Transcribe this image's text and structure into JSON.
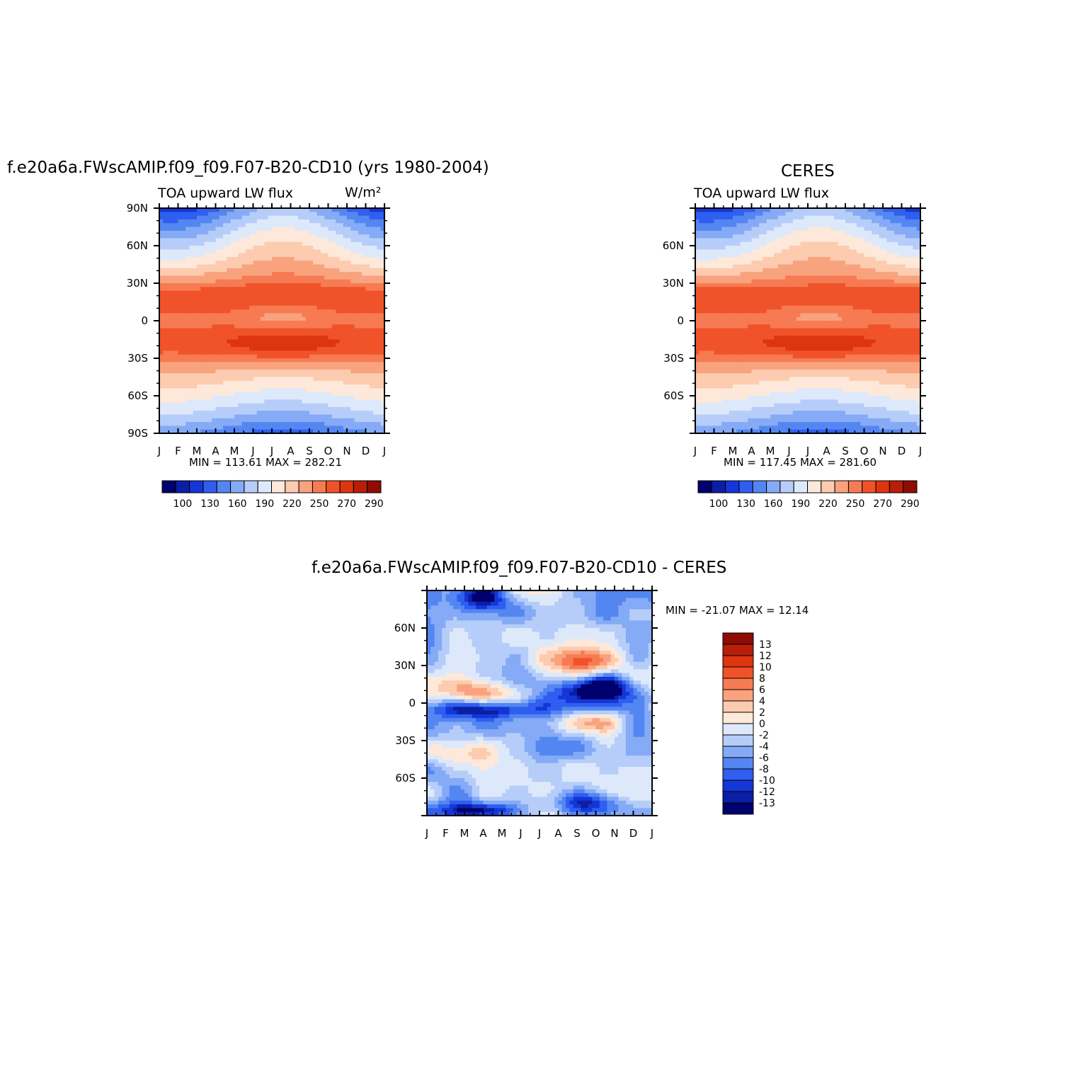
{
  "figure": {
    "title_left": "f.e20a6a.FWscAMIP.f09_f09.F07-B20-CD10 (yrs 1980-2004)",
    "title_right": "CERES",
    "title_bottom": "f.e20a6a.FWscAMIP.f09_f09.F07-B20-CD10 - CERES"
  },
  "chart_data": [
    {
      "type": "heatmap",
      "subtitle": "TOA upward LW flux",
      "units": "W/m²",
      "x_ticks": [
        "J",
        "F",
        "M",
        "A",
        "M",
        "J",
        "J",
        "A",
        "S",
        "O",
        "N",
        "D",
        "J"
      ],
      "y_ticks": [
        "90N",
        "60N",
        "30N",
        "0",
        "30S",
        "60S",
        "90S"
      ],
      "y_values": [
        90,
        60,
        30,
        0,
        -30,
        -60,
        -90
      ],
      "stats": "MIN = 113.61 MAX = 282.21",
      "min": 113.61,
      "max": 282.21,
      "colorbar_labels": [
        "100",
        "130",
        "160",
        "190",
        "220",
        "250",
        "270",
        "290"
      ],
      "colorbar_levels": [
        100,
        115,
        130,
        145,
        160,
        175,
        190,
        205,
        220,
        235,
        250,
        260,
        270,
        280,
        290
      ],
      "field": "model"
    },
    {
      "type": "heatmap",
      "subtitle": "TOA upward LW flux",
      "x_ticks": [
        "J",
        "F",
        "M",
        "A",
        "M",
        "J",
        "J",
        "A",
        "S",
        "O",
        "N",
        "D",
        "J"
      ],
      "y_ticks": [
        "60N",
        "30N",
        "0",
        "30S",
        "60S"
      ],
      "y_values": [
        60,
        30,
        0,
        -30,
        -60
      ],
      "stats": "MIN = 117.45 MAX = 281.60",
      "min": 117.45,
      "max": 281.6,
      "colorbar_labels": [
        "100",
        "130",
        "160",
        "190",
        "220",
        "250",
        "270",
        "290"
      ],
      "colorbar_levels": [
        100,
        115,
        130,
        145,
        160,
        175,
        190,
        205,
        220,
        235,
        250,
        260,
        270,
        280,
        290
      ],
      "field": "obs"
    },
    {
      "type": "heatmap",
      "x_ticks": [
        "J",
        "F",
        "M",
        "A",
        "M",
        "J",
        "J",
        "A",
        "S",
        "O",
        "N",
        "D",
        "J"
      ],
      "y_ticks": [
        "60N",
        "30N",
        "0",
        "30S",
        "60S"
      ],
      "y_values": [
        60,
        30,
        0,
        -30,
        -60
      ],
      "stats": "MIN = -21.07 MAX = 12.14",
      "min": -21.07,
      "max": 12.14,
      "colorbar_labels": [
        "13",
        "12",
        "10",
        "8",
        "6",
        "4",
        "2",
        "0",
        "-2",
        "-4",
        "-6",
        "-8",
        "-10",
        "-12",
        "-13"
      ],
      "field": "diff"
    }
  ],
  "colors": {
    "scale16": [
      "#00006e",
      "#0a1fa6",
      "#1536d6",
      "#2f5ef0",
      "#5486f2",
      "#85aaf6",
      "#b6cdf9",
      "#dde9fb",
      "#fde8d9",
      "#fccbb0",
      "#f9a27e",
      "#f77b52",
      "#f0532a",
      "#dc3510",
      "#b91e08",
      "#8e0c02"
    ],
    "diff_scale": [
      "#8e0c02",
      "#b91e08",
      "#dc3510",
      "#f0532a",
      "#f77b52",
      "#f9a27e",
      "#fccbb0",
      "#fde8d9",
      "#dde9fb",
      "#b6cdf9",
      "#85aaf6",
      "#5486f2",
      "#2f5ef0",
      "#1536d6",
      "#0a1fa6",
      "#00006e"
    ]
  }
}
